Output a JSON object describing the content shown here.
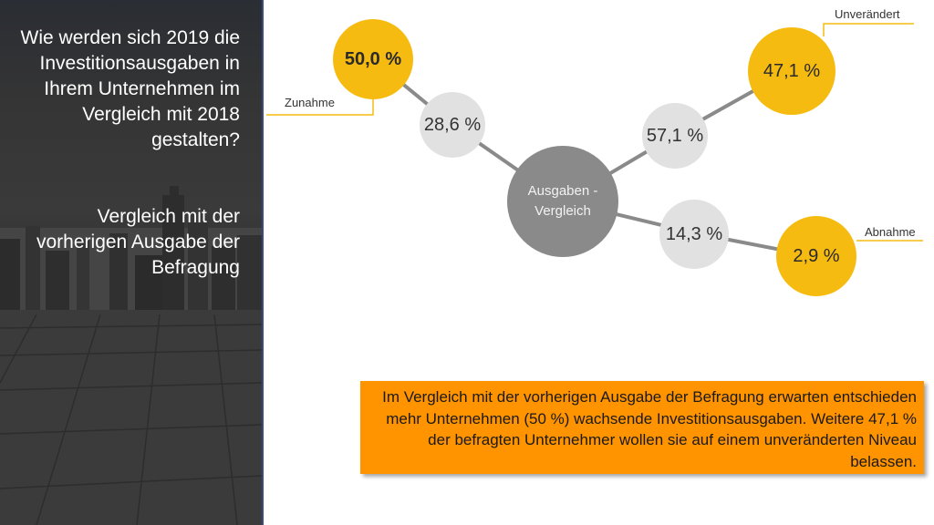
{
  "left": {
    "question": "Wie werden sich 2019 die Investitionsausgaben in Ihrem Unternehmen im Vergleich mit 2018 gestalten?",
    "subtitle": "Vergleich mit der vorherigen Ausgabe der Befragung"
  },
  "diagram": {
    "center": "Ausgaben - Vergleich",
    "zunahme": {
      "label": "Zunahme",
      "current": "50,0 %",
      "previous": "28,6 %"
    },
    "unveraendert": {
      "label": "Unverändert",
      "current": "47,1 %",
      "previous": "57,1 %"
    },
    "abnahme": {
      "label": "Abnahme",
      "current": "2,9 %",
      "previous": "14,3 %"
    },
    "colors": {
      "current": "#f6bb10",
      "previous": "#e1e1e1",
      "center": "#8a8a8a",
      "connector": "#8a8a8a",
      "callout": "#ff9300"
    }
  },
  "note": "Im Vergleich mit der vorherigen Ausgabe der Befragung erwarten entschieden mehr Unternehmen (50 %) wachsende Investitionsausgaben. Weitere 47,1 % der befragten Unternehmer wollen sie auf einem unveränderten Niveau belassen."
}
